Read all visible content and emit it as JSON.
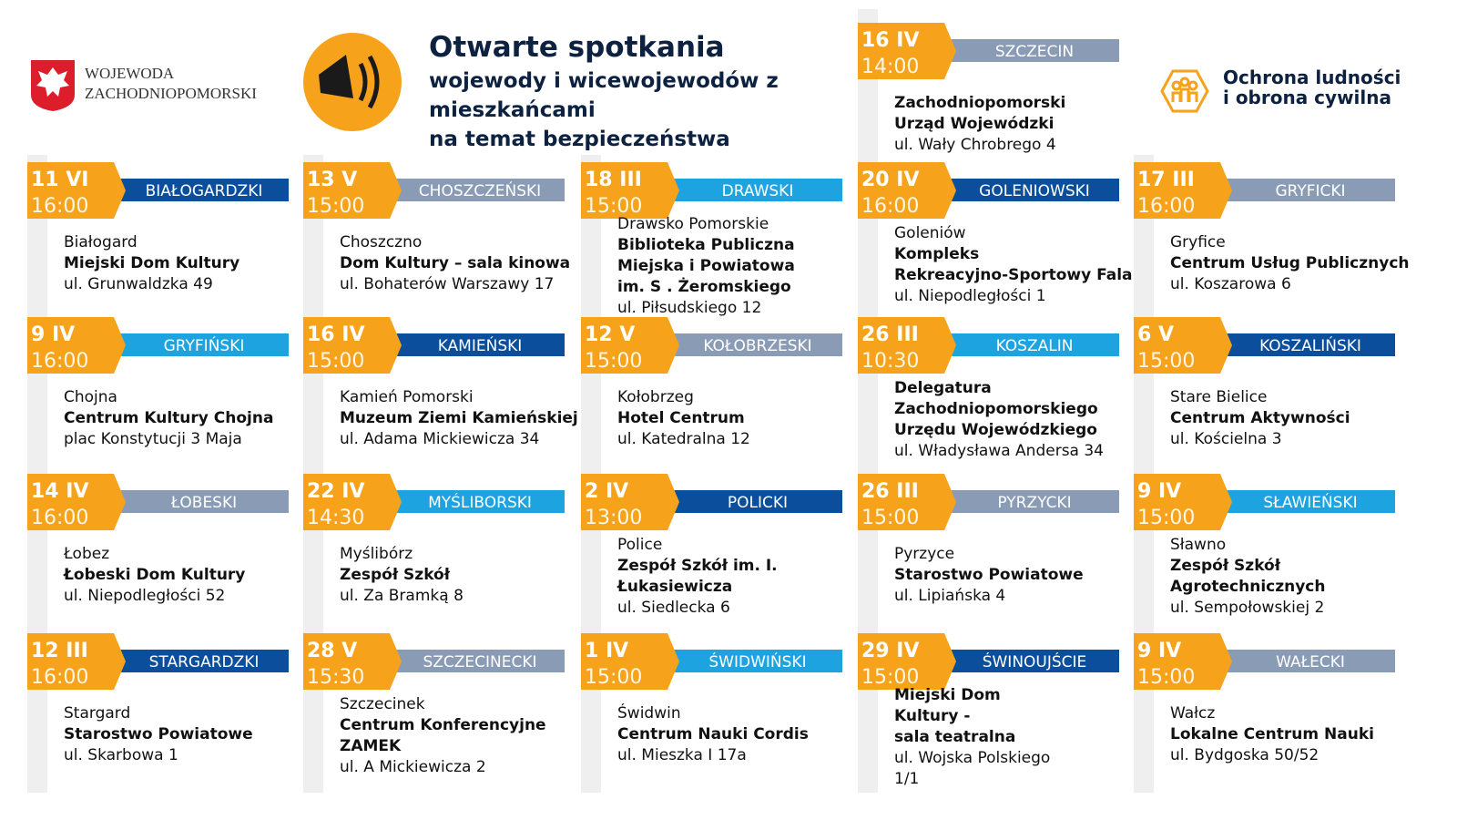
{
  "header": {
    "logo_left": [
      "WOJEWODA",
      "ZACHODNIOPOMORSKI"
    ],
    "title": "Otwarte spotkania",
    "subtitle": [
      "wojewody i wicewojewodów z",
      "mieszkańcami",
      "na temat bezpieczeństwa"
    ],
    "logo_right": [
      "Ochrona ludności",
      "i obrona cywilna"
    ]
  },
  "featured": {
    "date": "16 IV",
    "time": "14:00",
    "district": "SZCZECIN",
    "color": "#8a9bb5",
    "lines": [
      {
        "text": "Zachodniopomorski",
        "bold": true
      },
      {
        "text": "Urząd Wojewódzki",
        "bold": true
      },
      {
        "text": "ul. Wały Chrobrego 4",
        "bold": false
      }
    ]
  },
  "events": [
    {
      "date": "11 VI",
      "time": "16:00",
      "district": "BIAŁOGARDZKI",
      "color": "#0b4f9c",
      "lines": [
        {
          "text": "Białogard",
          "bold": false
        },
        {
          "text": "Miejski Dom Kultury",
          "bold": true
        },
        {
          "text": "ul. Grunwaldzka 49",
          "bold": false
        }
      ]
    },
    {
      "date": "13 V",
      "time": "15:00",
      "district": "CHOSZCZEŃSKI",
      "color": "#8a9bb5",
      "lines": [
        {
          "text": "Choszczno",
          "bold": false
        },
        {
          "text": "Dom Kultury – sala kinowa",
          "bold": true
        },
        {
          "text": "ul. Bohaterów Warszawy 17",
          "bold": false
        }
      ]
    },
    {
      "date": "18 III",
      "time": "15:00",
      "district": "DRAWSKI",
      "color": "#1ca3e0",
      "lines": [
        {
          "text": "Drawsko Pomorskie",
          "bold": false
        },
        {
          "text": "Biblioteka Publiczna",
          "bold": true
        },
        {
          "text": "Miejska i Powiatowa",
          "bold": true
        },
        {
          "text": "im. S . Żeromskiego",
          "bold": true
        },
        {
          "text": "ul. Piłsudskiego 12",
          "bold": false
        }
      ]
    },
    {
      "date": "20 IV",
      "time": "16:00",
      "district": "GOLENIOWSKI",
      "color": "#0b4f9c",
      "lines": [
        {
          "text": "Goleniów",
          "bold": false
        },
        {
          "text": "Kompleks",
          "bold": true
        },
        {
          "text": "Rekreacyjno-Sportowy Fala",
          "bold": true
        },
        {
          "text": "ul. Niepodległości 1",
          "bold": false
        }
      ]
    },
    {
      "date": "17 III",
      "time": "16:00",
      "district": "GRYFICKI",
      "color": "#8a9bb5",
      "lines": [
        {
          "text": "Gryfice",
          "bold": false
        },
        {
          "text": "Centrum Usług Publicznych",
          "bold": true
        },
        {
          "text": "ul. Koszarowa 6",
          "bold": false
        }
      ]
    },
    {
      "date": "9 IV",
      "time": "16:00",
      "district": "GRYFIŃSKI",
      "color": "#1ca3e0",
      "lines": [
        {
          "text": "Chojna",
          "bold": false
        },
        {
          "text": "Centrum Kultury Chojna",
          "bold": true
        },
        {
          "text": "plac Konstytucji 3 Maja",
          "bold": false
        }
      ]
    },
    {
      "date": "16 IV",
      "time": "15:00",
      "district": "KAMIEŃSKI",
      "color": "#0b4f9c",
      "lines": [
        {
          "text": "Kamień Pomorski",
          "bold": false
        },
        {
          "text": "Muzeum Ziemi Kamieńskiej",
          "bold": true
        },
        {
          "text": "ul. Adama Mickiewicza 34",
          "bold": false
        }
      ]
    },
    {
      "date": "12 V",
      "time": "15:00",
      "district": "KOŁOBRZESKI",
      "color": "#8a9bb5",
      "lines": [
        {
          "text": "Kołobrzeg",
          "bold": false
        },
        {
          "text": "Hotel Centrum",
          "bold": true
        },
        {
          "text": "ul. Katedralna 12",
          "bold": false
        }
      ]
    },
    {
      "date": "26 III",
      "time": "10:30",
      "district": "KOSZALIN",
      "color": "#1ca3e0",
      "lines": [
        {
          "text": "Delegatura",
          "bold": true
        },
        {
          "text": "Zachodniopomorskiego",
          "bold": true
        },
        {
          "text": "Urzędu Wojewódzkiego",
          "bold": true
        },
        {
          "text": "ul. Władysława Andersa 34",
          "bold": false
        }
      ]
    },
    {
      "date": "6 V",
      "time": "15:00",
      "district": "KOSZALIŃSKI",
      "color": "#0b4f9c",
      "lines": [
        {
          "text": "Stare Bielice",
          "bold": false
        },
        {
          "text": "Centrum Aktywności",
          "bold": true
        },
        {
          "text": "ul. Kościelna 3",
          "bold": false
        }
      ]
    },
    {
      "date": "14 IV",
      "time": "16:00",
      "district": "ŁOBESKI",
      "color": "#8a9bb5",
      "lines": [
        {
          "text": "Łobez",
          "bold": false
        },
        {
          "text": "Łobeski Dom Kultury",
          "bold": true
        },
        {
          "text": "ul. Niepodległości 52",
          "bold": false
        }
      ]
    },
    {
      "date": "22 IV",
      "time": "14:30",
      "district": "MYŚLIBORSKI",
      "color": "#1ca3e0",
      "lines": [
        {
          "text": "Myślibórz",
          "bold": false
        },
        {
          "text": "Zespół Szkół",
          "bold": true
        },
        {
          "text": "ul. Za Bramką 8",
          "bold": false
        }
      ]
    },
    {
      "date": "2 IV",
      "time": "13:00",
      "district": "POLICKI",
      "color": "#0b4f9c",
      "lines": [
        {
          "text": "Police",
          "bold": false
        },
        {
          "text": "Zespół Szkół im. I.",
          "bold": true
        },
        {
          "text": "Łukasiewicza",
          "bold": true
        },
        {
          "text": "ul. Siedlecka 6",
          "bold": false
        }
      ]
    },
    {
      "date": "26 III",
      "time": "15:00",
      "district": "PYRZYCKI",
      "color": "#8a9bb5",
      "lines": [
        {
          "text": "Pyrzyce",
          "bold": false
        },
        {
          "text": "Starostwo Powiatowe",
          "bold": true
        },
        {
          "text": "ul. Lipiańska 4",
          "bold": false
        }
      ]
    },
    {
      "date": "9 IV",
      "time": "15:00",
      "district": "SŁAWIEŃSKI",
      "color": "#1ca3e0",
      "lines": [
        {
          "text": "Sławno",
          "bold": false
        },
        {
          "text": "Zespół Szkół",
          "bold": true
        },
        {
          "text": "Agrotechnicznych",
          "bold": true
        },
        {
          "text": "ul. Sempołowskiej 2",
          "bold": false
        }
      ]
    },
    {
      "date": "12 III",
      "time": "16:00",
      "district": "STARGARDZKI",
      "color": "#0b4f9c",
      "lines": [
        {
          "text": "Stargard",
          "bold": false
        },
        {
          "text": "Starostwo Powiatowe",
          "bold": true
        },
        {
          "text": "ul. Skarbowa 1",
          "bold": false
        }
      ]
    },
    {
      "date": "28 V",
      "time": "15:30",
      "district": "SZCZECINECKI",
      "color": "#8a9bb5",
      "lines": [
        {
          "text": "Szczecinek",
          "bold": false
        },
        {
          "text": "Centrum Konferencyjne",
          "bold": true
        },
        {
          "text": "ZAMEK",
          "bold": true
        },
        {
          "text": "ul. A Mickiewicza 2",
          "bold": false
        }
      ]
    },
    {
      "date": "1 IV",
      "time": "15:00",
      "district": "ŚWIDWIŃSKI",
      "color": "#1ca3e0",
      "lines": [
        {
          "text": "Świdwin",
          "bold": false
        },
        {
          "text": "Centrum Nauki Cordis",
          "bold": true
        },
        {
          "text": "ul. Mieszka I 17a",
          "bold": false
        }
      ]
    },
    {
      "date": "29 IV",
      "time": "15:00",
      "district": "ŚWINOUJŚCIE",
      "color": "#0b4f9c",
      "lines": [
        {
          "text": "Miejski Dom",
          "bold": true
        },
        {
          "text": "Kultury -",
          "bold": true
        },
        {
          "text": "sala teatralna",
          "bold": true
        },
        {
          "text": "ul. Wojska Polskiego",
          "bold": false
        },
        {
          "text": "1/1",
          "bold": false
        }
      ]
    },
    {
      "date": "9 IV",
      "time": "15:00",
      "district": "WAŁECKI",
      "color": "#8a9bb5",
      "lines": [
        {
          "text": "Wałcz",
          "bold": false
        },
        {
          "text": "Lokalne Centrum Nauki",
          "bold": true
        },
        {
          "text": "ul. Bydgoska 50/52",
          "bold": false
        }
      ]
    }
  ]
}
